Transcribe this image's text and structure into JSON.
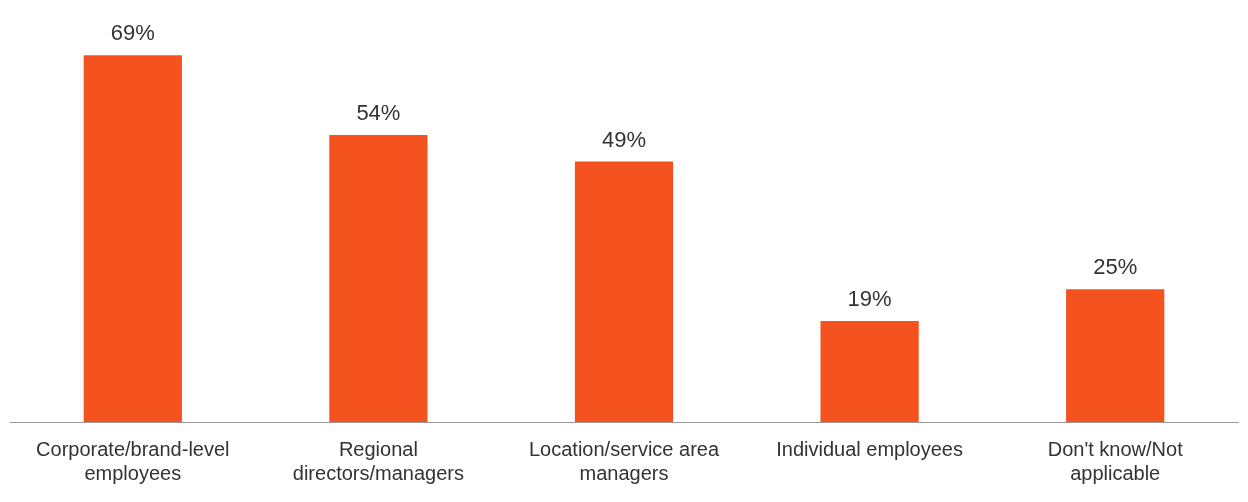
{
  "chart_data": {
    "type": "bar",
    "categories": [
      "Corporate/brand-level employees",
      "Regional directors/managers",
      "Location/service area managers",
      "Individual employees",
      "Don't know/Not applicable"
    ],
    "values": [
      69,
      54,
      49,
      19,
      25
    ],
    "value_labels": [
      "69%",
      "54%",
      "49%",
      "19%",
      "25%"
    ],
    "color": "#f4531f",
    "grid": false,
    "legend": false
  }
}
